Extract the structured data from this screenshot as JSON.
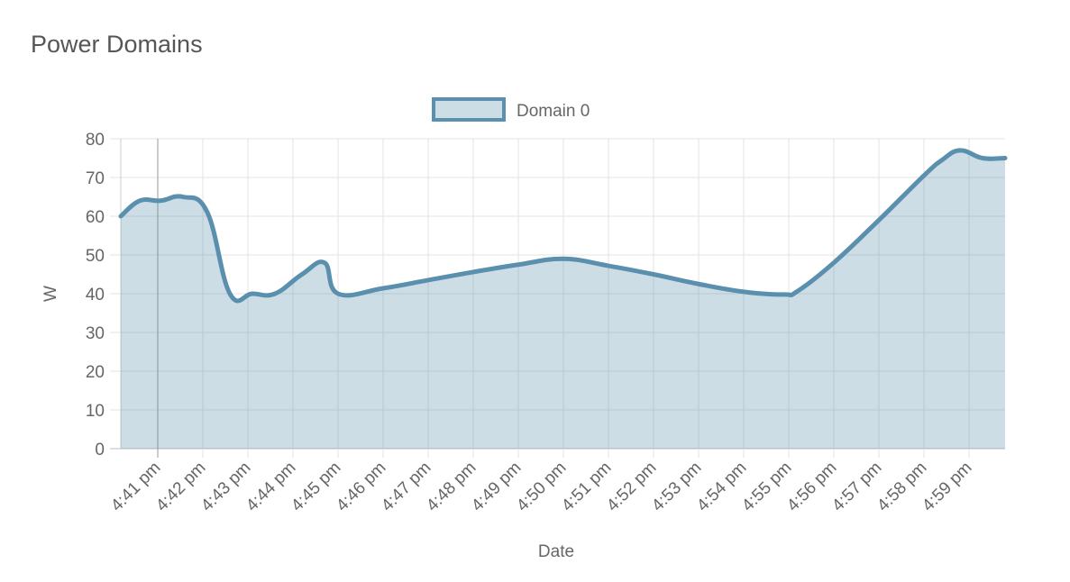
{
  "chart_data": {
    "type": "area",
    "title": "Power Domains",
    "x_label": "Date",
    "y_label": "W",
    "series": [
      {
        "name": "Domain 0",
        "color": "#5a8fad",
        "x": [
          40.18,
          40.6,
          41.06,
          41.56,
          42.1,
          42.6,
          43.1,
          43.6,
          44.2,
          44.7,
          45.0,
          46.0,
          47.0,
          48.0,
          49.0,
          50.0,
          51.0,
          52.0,
          53.0,
          54.0,
          54.9,
          55.2,
          56.0,
          57.0,
          58.0,
          58.4,
          58.8,
          59.3,
          59.8
        ],
        "values": [
          60,
          64,
          64,
          65,
          61,
          40,
          40,
          40,
          45,
          48,
          40,
          41.4,
          43.5,
          45.6,
          47.5,
          49,
          47.2,
          45,
          42.5,
          40.5,
          39.8,
          40.7,
          48,
          59,
          70.5,
          74.5,
          77,
          75,
          75
        ]
      }
    ],
    "xlim": [
      40.18,
      59.8
    ],
    "xticks": [
      {
        "value": 41,
        "label": "4:41 pm"
      },
      {
        "value": 42,
        "label": "4:42 pm"
      },
      {
        "value": 43,
        "label": "4:43 pm"
      },
      {
        "value": 44,
        "label": "4:44 pm"
      },
      {
        "value": 45,
        "label": "4:45 pm"
      },
      {
        "value": 46,
        "label": "4:46 pm"
      },
      {
        "value": 47,
        "label": "4:47 pm"
      },
      {
        "value": 48,
        "label": "4:48 pm"
      },
      {
        "value": 49,
        "label": "4:49 pm"
      },
      {
        "value": 50,
        "label": "4:50 pm"
      },
      {
        "value": 51,
        "label": "4:51 pm"
      },
      {
        "value": 52,
        "label": "4:52 pm"
      },
      {
        "value": 53,
        "label": "4:53 pm"
      },
      {
        "value": 54,
        "label": "4:54 pm"
      },
      {
        "value": 55,
        "label": "4:55 pm"
      },
      {
        "value": 56,
        "label": "4:56 pm"
      },
      {
        "value": 57,
        "label": "4:57 pm"
      },
      {
        "value": 58,
        "label": "4:58 pm"
      },
      {
        "value": 59,
        "label": "4:59 pm"
      }
    ],
    "ylim": [
      0,
      80
    ],
    "yticks": [
      0,
      10,
      20,
      30,
      40,
      50,
      60,
      70,
      80
    ],
    "grid": true,
    "legend": "top"
  }
}
